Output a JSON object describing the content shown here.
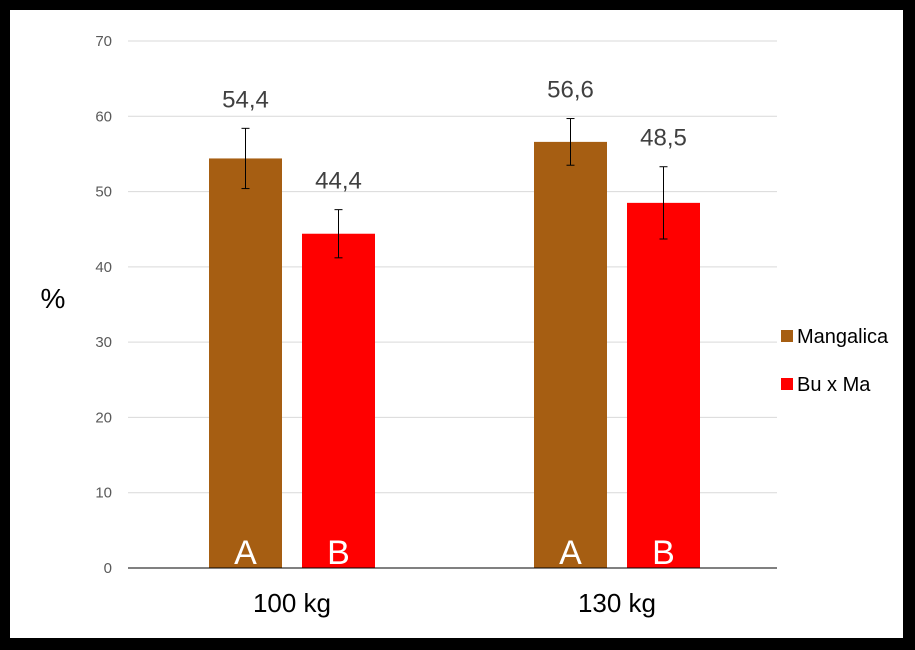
{
  "chart_data": {
    "type": "bar",
    "ylabel": "%",
    "ylim": [
      0,
      70
    ],
    "yticks": [
      0,
      10,
      20,
      30,
      40,
      50,
      60,
      70
    ],
    "categories": [
      "100 kg",
      "130 kg"
    ],
    "grid": true,
    "legend_position": "right",
    "series": [
      {
        "name": "Mangalica",
        "color": "#A65E12",
        "values": [
          54.4,
          56.6
        ],
        "value_labels": [
          "54,4",
          "56,6"
        ],
        "error": [
          4.0,
          3.1
        ],
        "letters": [
          "A",
          "A"
        ]
      },
      {
        "name": "Bu x Ma",
        "color": "#FF0000",
        "values": [
          44.4,
          48.5
        ],
        "value_labels": [
          "44,4",
          "48,5"
        ],
        "error": [
          3.2,
          4.8
        ],
        "letters": [
          "B",
          "B"
        ]
      }
    ]
  }
}
